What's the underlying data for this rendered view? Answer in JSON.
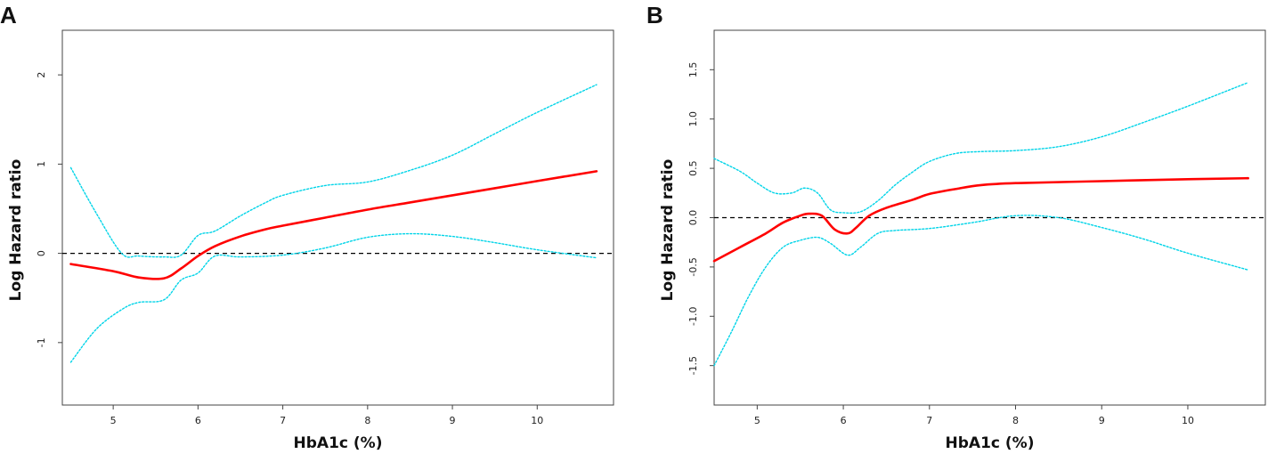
{
  "chart_data": [
    {
      "panel": "A",
      "type": "line",
      "title": "",
      "xlabel": "HbA1c (%)",
      "ylabel": "Log Hazard ratio",
      "xlim": [
        4.4,
        10.9
      ],
      "ylim": [
        -1.7,
        2.5
      ],
      "xticks": [
        5,
        6,
        7,
        8,
        9,
        10
      ],
      "yticks": [
        -1,
        0,
        1,
        2
      ],
      "ytick_labels": [
        "-1",
        "0",
        "1",
        "2"
      ],
      "reference_line": 0,
      "colors": {
        "estimate": "#ff0000",
        "ci": "#00d4e8",
        "reference": "#000000"
      },
      "series": [
        {
          "name": "estimate",
          "x": [
            4.5,
            5.0,
            5.3,
            5.6,
            5.8,
            6.0,
            6.2,
            6.5,
            6.8,
            7.0,
            7.5,
            8.0,
            8.5,
            9.0,
            9.5,
            10.0,
            10.7
          ],
          "y": [
            -0.12,
            -0.2,
            -0.27,
            -0.28,
            -0.17,
            -0.03,
            0.08,
            0.19,
            0.27,
            0.31,
            0.4,
            0.49,
            0.57,
            0.65,
            0.73,
            0.81,
            0.92
          ]
        },
        {
          "name": "upper CI",
          "x": [
            4.5,
            4.8,
            5.1,
            5.3,
            5.6,
            5.8,
            6.0,
            6.2,
            6.5,
            6.8,
            7.0,
            7.5,
            8.0,
            8.5,
            9.0,
            9.5,
            10.0,
            10.7
          ],
          "y": [
            0.96,
            0.45,
            0.0,
            -0.03,
            -0.04,
            -0.02,
            0.2,
            0.25,
            0.42,
            0.57,
            0.65,
            0.76,
            0.8,
            0.93,
            1.1,
            1.34,
            1.58,
            1.89
          ]
        },
        {
          "name": "lower CI",
          "x": [
            4.5,
            4.8,
            5.1,
            5.3,
            5.6,
            5.8,
            6.0,
            6.2,
            6.5,
            7.0,
            7.5,
            8.0,
            8.5,
            9.0,
            9.5,
            10.0,
            10.7
          ],
          "y": [
            -1.22,
            -0.85,
            -0.63,
            -0.55,
            -0.52,
            -0.3,
            -0.22,
            -0.03,
            -0.04,
            -0.02,
            0.06,
            0.18,
            0.22,
            0.19,
            0.12,
            0.04,
            -0.05
          ]
        }
      ]
    },
    {
      "panel": "B",
      "type": "line",
      "title": "",
      "xlabel": "HbA1c (%)",
      "ylabel": "Log Hazard ratio",
      "xlim": [
        4.5,
        10.9
      ],
      "ylim": [
        -1.9,
        1.9
      ],
      "xticks": [
        5,
        6,
        7,
        8,
        9,
        10
      ],
      "yticks": [
        -1.5,
        -1.0,
        -0.5,
        0.0,
        0.5,
        1.0,
        1.5
      ],
      "ytick_labels": [
        "-1.5",
        "-1.0",
        "-0.5",
        "0.0",
        "0.5",
        "1.0",
        "1.5"
      ],
      "reference_line": 0,
      "colors": {
        "estimate": "#ff0000",
        "ci": "#00d4e8",
        "reference": "#000000"
      },
      "series": [
        {
          "name": "estimate",
          "x": [
            4.5,
            4.8,
            5.1,
            5.3,
            5.5,
            5.6,
            5.75,
            5.9,
            6.05,
            6.15,
            6.3,
            6.5,
            6.8,
            7.0,
            7.3,
            7.6,
            8.0,
            9.0,
            10.0,
            10.7
          ],
          "y": [
            -0.44,
            -0.3,
            -0.16,
            -0.05,
            0.02,
            0.04,
            0.02,
            -0.12,
            -0.16,
            -0.1,
            0.02,
            0.1,
            0.18,
            0.24,
            0.29,
            0.33,
            0.35,
            0.37,
            0.39,
            0.4
          ]
        },
        {
          "name": "upper CI",
          "x": [
            4.5,
            4.8,
            5.0,
            5.2,
            5.4,
            5.55,
            5.7,
            5.85,
            6.0,
            6.2,
            6.4,
            6.6,
            6.8,
            7.0,
            7.3,
            7.6,
            8.0,
            8.5,
            9.0,
            9.5,
            10.0,
            10.7
          ],
          "y": [
            0.6,
            0.47,
            0.35,
            0.25,
            0.25,
            0.3,
            0.25,
            0.08,
            0.05,
            0.06,
            0.17,
            0.33,
            0.46,
            0.57,
            0.65,
            0.67,
            0.68,
            0.72,
            0.82,
            0.97,
            1.13,
            1.37
          ]
        },
        {
          "name": "lower CI",
          "x": [
            4.5,
            4.7,
            4.9,
            5.1,
            5.3,
            5.5,
            5.7,
            5.85,
            6.05,
            6.2,
            6.4,
            6.6,
            7.0,
            7.5,
            8.0,
            8.5,
            9.0,
            9.5,
            10.0,
            10.7
          ],
          "y": [
            -1.5,
            -1.16,
            -0.8,
            -0.5,
            -0.3,
            -0.23,
            -0.2,
            -0.26,
            -0.38,
            -0.3,
            -0.16,
            -0.13,
            -0.11,
            -0.05,
            0.02,
            0.0,
            -0.1,
            -0.22,
            -0.36,
            -0.53
          ]
        }
      ]
    }
  ]
}
